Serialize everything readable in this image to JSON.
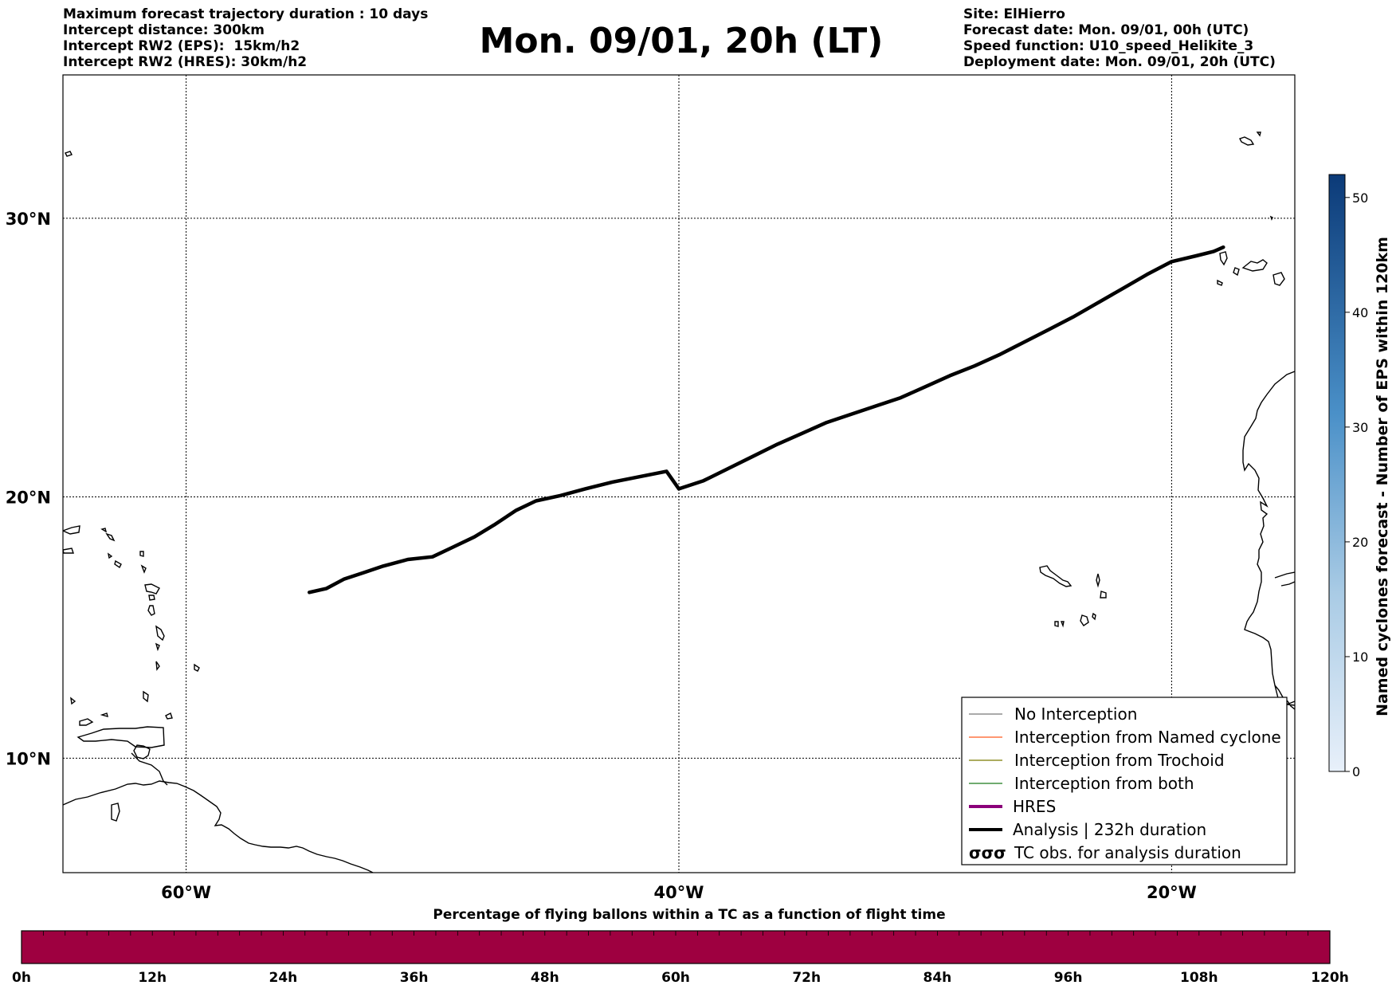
{
  "header": {
    "left": [
      "Maximum forecast trajectory duration : 10 days",
      "Intercept distance: 300km",
      "Intercept RW2 (EPS):  15km/h2",
      "Intercept RW2 (HRES): 30km/h2"
    ],
    "title": "Mon. 09/01, 20h (LT)",
    "right": [
      "Site: ElHierro",
      "Forecast date: Mon. 09/01, 00h (UTC)",
      "Speed function: U10_speed_Helikite_3",
      "Deployment date: Mon. 09/01, 20h (UTC)"
    ]
  },
  "map": {
    "lon_range": [
      -65,
      -15
    ],
    "lat_range": [
      5.5,
      34.8
    ],
    "lat_ticks": [
      {
        "value": 30,
        "label": "30°N"
      },
      {
        "value": 20,
        "label": "20°N"
      },
      {
        "value": 10,
        "label": "10°N"
      }
    ],
    "lon_ticks": [
      {
        "value": -60,
        "label": "60°W"
      },
      {
        "value": -40,
        "label": "40°W"
      },
      {
        "value": -20,
        "label": "20°W"
      }
    ],
    "grid": true,
    "analysis_track": {
      "color": "#000000",
      "points": [
        [
          -55.0,
          16.4
        ],
        [
          -54.3,
          16.55
        ],
        [
          -53.6,
          16.9
        ],
        [
          -52.8,
          17.15
        ],
        [
          -52.0,
          17.4
        ],
        [
          -51.0,
          17.65
        ],
        [
          -50.0,
          17.75
        ],
        [
          -49.2,
          18.1
        ],
        [
          -48.3,
          18.5
        ],
        [
          -47.5,
          18.95
        ],
        [
          -46.6,
          19.5
        ],
        [
          -45.8,
          19.85
        ],
        [
          -44.8,
          20.05
        ],
        [
          -43.8,
          20.3
        ],
        [
          -42.7,
          20.55
        ],
        [
          -41.6,
          20.75
        ],
        [
          -40.5,
          20.95
        ],
        [
          -40.0,
          20.3
        ],
        [
          -39.0,
          20.6
        ],
        [
          -38.0,
          21.05
        ],
        [
          -37.0,
          21.5
        ],
        [
          -36.0,
          21.95
        ],
        [
          -35.0,
          22.35
        ],
        [
          -34.0,
          22.75
        ],
        [
          -33.0,
          23.05
        ],
        [
          -32.0,
          23.35
        ],
        [
          -31.0,
          23.65
        ],
        [
          -30.0,
          24.05
        ],
        [
          -29.0,
          24.45
        ],
        [
          -28.0,
          24.8
        ],
        [
          -27.0,
          25.2
        ],
        [
          -26.0,
          25.65
        ],
        [
          -25.0,
          26.1
        ],
        [
          -24.0,
          26.55
        ],
        [
          -23.0,
          27.05
        ],
        [
          -22.0,
          27.55
        ],
        [
          -21.0,
          28.05
        ],
        [
          -20.0,
          28.5
        ],
        [
          -19.0,
          28.7
        ],
        [
          -18.3,
          28.85
        ],
        [
          -17.9,
          29.0
        ]
      ]
    }
  },
  "legend": {
    "items": [
      {
        "label": "No Interception",
        "color": "#777777",
        "style": "thin"
      },
      {
        "label": "Interception from Named cyclone",
        "color": "#ff5a1f",
        "style": "thin"
      },
      {
        "label": "Interception from Trochoid",
        "color": "#7a7a00",
        "style": "thin"
      },
      {
        "label": "Interception from both",
        "color": "#1a7a1a",
        "style": "thin"
      },
      {
        "label": "HRES",
        "color": "#8b007a",
        "style": "thick"
      },
      {
        "label": "Analysis | 232h duration",
        "color": "#000000",
        "style": "thick"
      },
      {
        "label": "TC obs. for analysis duration",
        "color": "#000000",
        "style": "symbol"
      }
    ],
    "symbol_glyphs": "σσσ"
  },
  "colorbar_right": {
    "title": "Named cyclones forecast - Number of EPS within 120km",
    "ticks": [
      "0",
      "10",
      "20",
      "30",
      "40",
      "50"
    ],
    "range": [
      0,
      52
    ],
    "color_low": "#e3edf8",
    "color_high": "#0b3a78"
  },
  "time_bar": {
    "title": "Percentage of flying ballons within a TC as a function of flight time",
    "ticks": [
      "0h",
      "12h",
      "24h",
      "36h",
      "48h",
      "60h",
      "72h",
      "84h",
      "96h",
      "108h",
      "120h"
    ],
    "fill_color": "#9e0040"
  }
}
